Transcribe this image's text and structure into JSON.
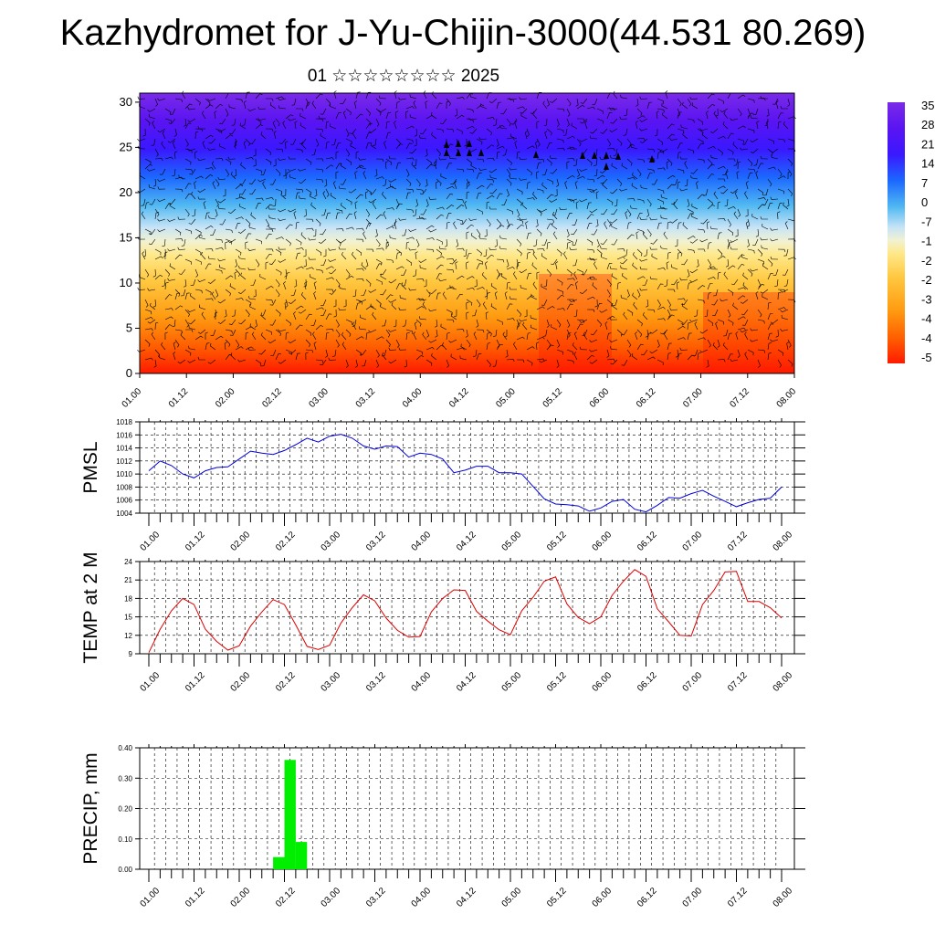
{
  "title": "Kazhydromet for J-Yu-Chijin-3000(44.531 80.269)",
  "subtitle": "01 ☆☆☆☆☆☆☆☆ 2025",
  "colors": {
    "pmsl_line": "#0000dd",
    "temp_line": "#dd0000",
    "precip_bar": "#00ee00",
    "frame": "#000000"
  },
  "chart_data": [
    {
      "type": "heatmap",
      "title": "01 ☆☆☆☆☆☆☆☆ 2025",
      "ylabel": "",
      "xlabel": "",
      "ylim": [
        0,
        31
      ],
      "yticks": [
        "0",
        "5",
        "10",
        "15",
        "20",
        "25",
        "30"
      ],
      "xticks": [
        "01.00",
        "01.12",
        "02.00",
        "02.12",
        "03.00",
        "03.12",
        "04.00",
        "04.12",
        "05.00",
        "05.12",
        "06.00",
        "06.12",
        "07.00",
        "07.12",
        "08.00"
      ],
      "colorbar_labels": [
        "35",
        "28",
        "21",
        "14",
        "7",
        "0",
        "-7",
        "-1",
        "-2",
        "-2",
        "-3",
        "-4",
        "-4",
        "-5"
      ],
      "grid": false,
      "overlay": "wind barbs"
    },
    {
      "type": "line",
      "ylabel": "PMSL",
      "ylim": [
        1004,
        1018
      ],
      "yticks": [
        "1004",
        "1006",
        "1008",
        "1010",
        "1012",
        "1014",
        "1016",
        "1018"
      ],
      "xticks": [
        "01.00",
        "01.12",
        "02.00",
        "02.12",
        "03.00",
        "03.12",
        "04.00",
        "04.12",
        "05.00",
        "05.12",
        "06.00",
        "06.12",
        "07.00",
        "07.12",
        "08.00"
      ],
      "grid": true,
      "values": [
        1010.5,
        1012,
        1011.3,
        1010,
        1009.4,
        1010.5,
        1011,
        1011.1,
        1012.3,
        1013.5,
        1013.2,
        1013,
        1013.6,
        1014.5,
        1015.5,
        1014.9,
        1015.8,
        1016.1,
        1015.5,
        1014.3,
        1013.8,
        1014.3,
        1014.2,
        1012.6,
        1013.2,
        1013,
        1012.3,
        1010.2,
        1010.6,
        1011.2,
        1011.2,
        1010.2,
        1010.2,
        1010,
        1008.1,
        1006.2,
        1005.4,
        1005.3,
        1005.1,
        1004.3,
        1004.8,
        1005.8,
        1006.1,
        1004.6,
        1004.2,
        1005.2,
        1006.4,
        1006.3,
        1007,
        1007.5,
        1006.6,
        1005.8,
        1005,
        1005.6,
        1006.1,
        1006.3,
        1008
      ]
    },
    {
      "type": "line",
      "ylabel": "TEMP at 2 M",
      "ylim": [
        9,
        24
      ],
      "yticks": [
        "9",
        "12",
        "15",
        "18",
        "21",
        "24"
      ],
      "xticks": [
        "01.00",
        "01.12",
        "02.00",
        "02.12",
        "03.00",
        "03.12",
        "04.00",
        "04.12",
        "05.00",
        "05.12",
        "06.00",
        "06.12",
        "07.00",
        "07.12",
        "08.00"
      ],
      "grid": true,
      "values": [
        9.2,
        13,
        16,
        18,
        17,
        13,
        11,
        9.6,
        10.3,
        13.5,
        15.8,
        17.8,
        17,
        13.7,
        10.2,
        9.7,
        10.4,
        14,
        16.5,
        18.6,
        17.6,
        14.8,
        12.8,
        11.7,
        11.8,
        15.8,
        18,
        19.4,
        19.3,
        15.9,
        14.3,
        12.9,
        12.1,
        16,
        18.2,
        20.8,
        21.5,
        17.1,
        14.9,
        13.9,
        15,
        18.5,
        20.8,
        22.7,
        21.6,
        16.3,
        14.2,
        12,
        11.9,
        17,
        19.3,
        22.3,
        22.4,
        17.5,
        17.5,
        16.5,
        14.8
      ]
    },
    {
      "type": "bar",
      "ylabel": "PRECIP, mm",
      "ylim": [
        0,
        0.4
      ],
      "yticks": [
        "0.00",
        "0.10",
        "0.20",
        "0.30",
        "0.40"
      ],
      "xticks": [
        "01.00",
        "01.12",
        "02.00",
        "02.12",
        "03.00",
        "03.12",
        "04.00",
        "04.12",
        "05.00",
        "05.12",
        "06.00",
        "06.12",
        "07.00",
        "07.12",
        "08.00"
      ],
      "grid": true,
      "values": [
        0,
        0,
        0,
        0,
        0,
        0,
        0,
        0,
        0,
        0,
        0,
        0.04,
        0.36,
        0.09,
        0,
        0,
        0,
        0,
        0,
        0,
        0,
        0,
        0,
        0,
        0,
        0,
        0,
        0,
        0,
        0,
        0,
        0,
        0,
        0,
        0,
        0,
        0,
        0,
        0,
        0,
        0,
        0,
        0,
        0,
        0,
        0,
        0,
        0,
        0,
        0,
        0,
        0,
        0,
        0,
        0,
        0
      ]
    }
  ]
}
